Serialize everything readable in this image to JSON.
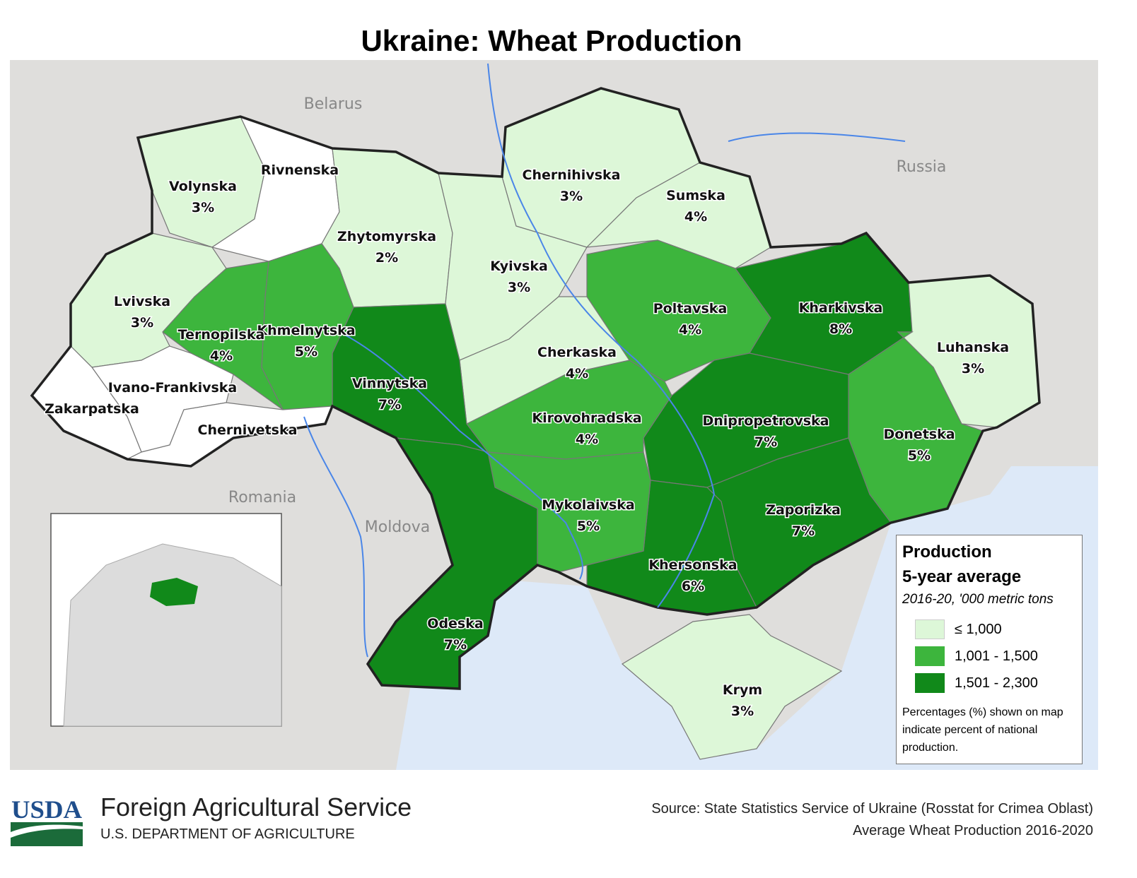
{
  "title": "Ukraine: Wheat Production",
  "colors": {
    "low": "#ddf7d8",
    "mid": "#3db53d",
    "high": "#11891a",
    "none": "#ffffff",
    "land": "#dfdedc",
    "sea": "#dde9f8",
    "river": "#4a86e8",
    "border": "#222222"
  },
  "countries": [
    "Belarus",
    "Russia",
    "Romania",
    "Moldova"
  ],
  "regions": [
    {
      "name": "Volynska",
      "pct": "3%",
      "cls": "low"
    },
    {
      "name": "Rivnenska",
      "pct": "",
      "cls": "none"
    },
    {
      "name": "Zhytomyrska",
      "pct": "2%",
      "cls": "low"
    },
    {
      "name": "Kyivska",
      "pct": "3%",
      "cls": "low"
    },
    {
      "name": "Chernihivska",
      "pct": "3%",
      "cls": "low"
    },
    {
      "name": "Sumska",
      "pct": "4%",
      "cls": "low"
    },
    {
      "name": "Poltavska",
      "pct": "4%",
      "cls": "mid"
    },
    {
      "name": "Kharkivska",
      "pct": "8%",
      "cls": "high"
    },
    {
      "name": "Luhanska",
      "pct": "3%",
      "cls": "low"
    },
    {
      "name": "Donetska",
      "pct": "5%",
      "cls": "mid"
    },
    {
      "name": "Dnipropetrovska",
      "pct": "7%",
      "cls": "high"
    },
    {
      "name": "Zaporizka",
      "pct": "7%",
      "cls": "high"
    },
    {
      "name": "Khersonska",
      "pct": "6%",
      "cls": "high"
    },
    {
      "name": "Mykolaivska",
      "pct": "5%",
      "cls": "mid"
    },
    {
      "name": "Kirovohradska",
      "pct": "4%",
      "cls": "mid"
    },
    {
      "name": "Cherkaska",
      "pct": "4%",
      "cls": "low"
    },
    {
      "name": "Vinnytska",
      "pct": "7%",
      "cls": "high"
    },
    {
      "name": "Odeska",
      "pct": "7%",
      "cls": "high"
    },
    {
      "name": "Khmelnytska",
      "pct": "5%",
      "cls": "mid"
    },
    {
      "name": "Ternopilska",
      "pct": "4%",
      "cls": "mid"
    },
    {
      "name": "Lvivska",
      "pct": "3%",
      "cls": "low"
    },
    {
      "name": "Ivano-Frankivska",
      "pct": "",
      "cls": "none"
    },
    {
      "name": "Zakarpatska",
      "pct": "",
      "cls": "none"
    },
    {
      "name": "Chernivetska",
      "pct": "",
      "cls": "none"
    },
    {
      "name": "Krym",
      "pct": "3%",
      "cls": "low"
    }
  ],
  "legend": {
    "title1": "Production",
    "title2": "5-year average",
    "subtitle": "2016-20, '000 metric tons",
    "classes": [
      {
        "label": "≤ 1,000",
        "color": "#ddf7d8"
      },
      {
        "label": "1,001 - 1,500",
        "color": "#3db53d"
      },
      {
        "label": "1,501 - 2,300",
        "color": "#11891a"
      }
    ],
    "note": "Percentages (%) shown on map indicate percent of national production."
  },
  "footer": {
    "logo_text": "USDA",
    "agency": "Foreign Agricultural Service",
    "department": "U.S. DEPARTMENT OF AGRICULTURE",
    "source_line1": "Source: State Statistics Service of Ukraine (Rosstat for Crimea Oblast)",
    "source_line2": "Average Wheat Production 2016-2020"
  }
}
